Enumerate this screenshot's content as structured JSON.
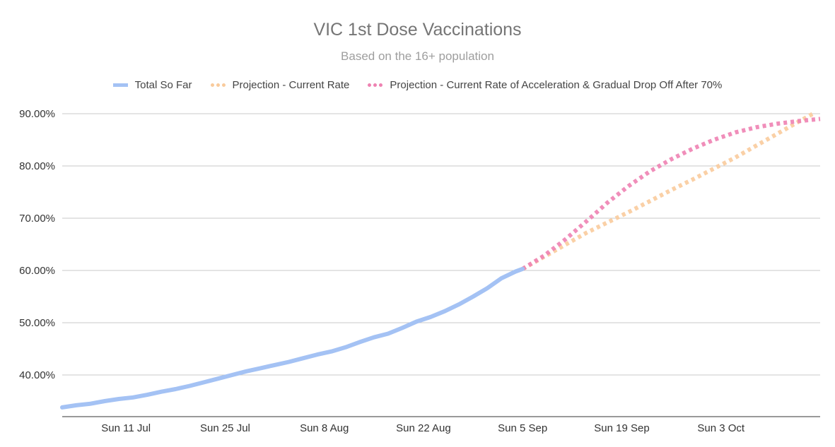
{
  "chart_data": {
    "type": "line",
    "title": "VIC 1st Dose Vaccinations",
    "subtitle": "Based on the 16+ population",
    "xlabel": "",
    "ylabel": "",
    "ylim": [
      33,
      90
    ],
    "grid": true,
    "legend_position": "top",
    "y_ticks": [
      {
        "value": 90,
        "label": "90.00%"
      },
      {
        "value": 80,
        "label": "80.00%"
      },
      {
        "value": 70,
        "label": "70.00%"
      },
      {
        "value": 60,
        "label": "60.00%"
      },
      {
        "value": 50,
        "label": "50.00%"
      },
      {
        "value": 40,
        "label": "40.00%"
      }
    ],
    "x_range": [
      "2021-07-02",
      "2021-10-17"
    ],
    "x_ticks": [
      {
        "date": "2021-07-11",
        "label": "Sun 11 Jul"
      },
      {
        "date": "2021-07-25",
        "label": "Sun 25 Jul"
      },
      {
        "date": "2021-08-08",
        "label": "Sun 8 Aug"
      },
      {
        "date": "2021-08-22",
        "label": "Sun 22 Aug"
      },
      {
        "date": "2021-09-05",
        "label": "Sun 5 Sep"
      },
      {
        "date": "2021-09-19",
        "label": "Sun 19 Sep"
      },
      {
        "date": "2021-10-03",
        "label": "Sun 3 Oct"
      }
    ],
    "series": [
      {
        "name": "Total So Far",
        "color": "#a4c2f4",
        "style": "solid",
        "points": [
          [
            "2021-07-02",
            33.8
          ],
          [
            "2021-07-04",
            34.2
          ],
          [
            "2021-07-06",
            34.5
          ],
          [
            "2021-07-08",
            35.0
          ],
          [
            "2021-07-10",
            35.4
          ],
          [
            "2021-07-12",
            35.7
          ],
          [
            "2021-07-14",
            36.2
          ],
          [
            "2021-07-16",
            36.8
          ],
          [
            "2021-07-18",
            37.3
          ],
          [
            "2021-07-20",
            37.9
          ],
          [
            "2021-07-22",
            38.6
          ],
          [
            "2021-07-24",
            39.3
          ],
          [
            "2021-07-26",
            40.0
          ],
          [
            "2021-07-28",
            40.7
          ],
          [
            "2021-07-30",
            41.3
          ],
          [
            "2021-08-01",
            41.9
          ],
          [
            "2021-08-03",
            42.5
          ],
          [
            "2021-08-05",
            43.2
          ],
          [
            "2021-08-07",
            43.9
          ],
          [
            "2021-08-09",
            44.5
          ],
          [
            "2021-08-11",
            45.3
          ],
          [
            "2021-08-13",
            46.3
          ],
          [
            "2021-08-15",
            47.2
          ],
          [
            "2021-08-17",
            47.9
          ],
          [
            "2021-08-19",
            49.0
          ],
          [
            "2021-08-21",
            50.2
          ],
          [
            "2021-08-23",
            51.1
          ],
          [
            "2021-08-25",
            52.2
          ],
          [
            "2021-08-27",
            53.5
          ],
          [
            "2021-08-29",
            55.0
          ],
          [
            "2021-08-31",
            56.6
          ],
          [
            "2021-09-02",
            58.5
          ],
          [
            "2021-09-04",
            59.8
          ],
          [
            "2021-09-05",
            60.3
          ]
        ]
      },
      {
        "name": "Projection - Current Rate",
        "color": "#f9cb9c",
        "style": "dotted",
        "points": [
          [
            "2021-09-05",
            60.3
          ],
          [
            "2021-09-08",
            62.6
          ],
          [
            "2021-09-11",
            64.9
          ],
          [
            "2021-09-14",
            67.2
          ],
          [
            "2021-09-17",
            69.2
          ],
          [
            "2021-09-20",
            71.2
          ],
          [
            "2021-09-23",
            73.3
          ],
          [
            "2021-09-26",
            75.4
          ],
          [
            "2021-09-29",
            77.4
          ],
          [
            "2021-10-02",
            79.5
          ],
          [
            "2021-10-05",
            81.6
          ],
          [
            "2021-10-08",
            83.9
          ],
          [
            "2021-10-11",
            86.2
          ],
          [
            "2021-10-14",
            88.5
          ],
          [
            "2021-10-16",
            90.0
          ]
        ]
      },
      {
        "name": "Projection - Current Rate of Acceleration & Gradual Drop Off After 70%",
        "color": "#ee82b2",
        "style": "dotted",
        "points": [
          [
            "2021-09-05",
            60.3
          ],
          [
            "2021-09-08",
            62.8
          ],
          [
            "2021-09-11",
            65.9
          ],
          [
            "2021-09-14",
            69.4
          ],
          [
            "2021-09-17",
            73.0
          ],
          [
            "2021-09-20",
            76.2
          ],
          [
            "2021-09-23",
            79.0
          ],
          [
            "2021-09-26",
            81.3
          ],
          [
            "2021-09-29",
            83.3
          ],
          [
            "2021-10-02",
            85.0
          ],
          [
            "2021-10-05",
            86.4
          ],
          [
            "2021-10-08",
            87.4
          ],
          [
            "2021-10-11",
            88.1
          ],
          [
            "2021-10-14",
            88.6
          ],
          [
            "2021-10-17",
            89.0
          ]
        ]
      }
    ]
  }
}
